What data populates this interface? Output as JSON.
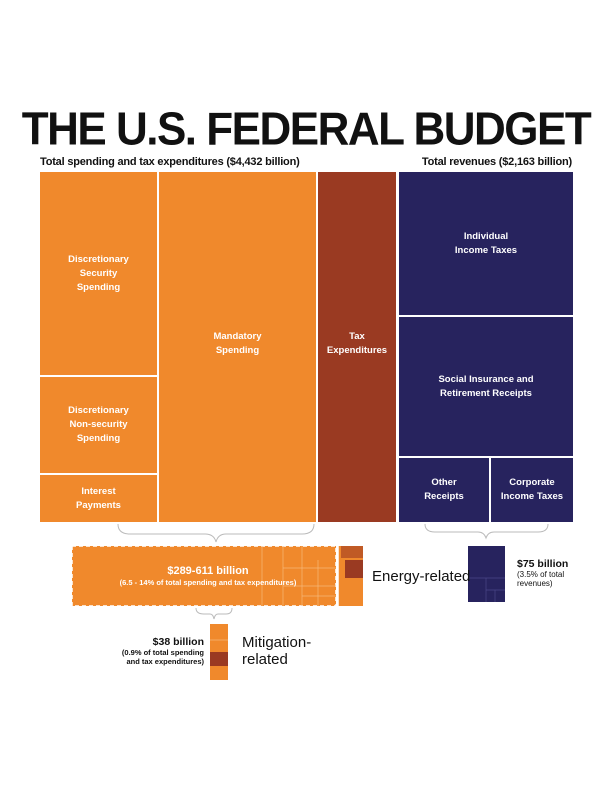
{
  "title": "THE U.S. FEDERAL BUDGET",
  "spending_caption": "Total spending and tax expenditures ($4,432 billion)",
  "revenue_caption": "Total revenues ($2,163 billion)",
  "spending_blocks": {
    "discretionary_security": "Discretionary\nSecurity\nSpending",
    "discretionary_nonsecurity": "Discretionary\nNon-security\nSpending",
    "interest": "Interest\nPayments",
    "mandatory": "Mandatory\nSpending",
    "tax_expenditures": "Tax\nExpenditures"
  },
  "revenue_blocks": {
    "individual": "Individual\nIncome Taxes",
    "social": "Social Insurance and\nRetirement Receipts",
    "other": "Other\nReceipts",
    "corporate": "Corporate\nIncome Taxes"
  },
  "energy": {
    "amount": "$289-611 billion",
    "note": "(6.5 - 14% of total spending and tax expenditures)",
    "label": "Energy-related"
  },
  "revenue_energy": {
    "amount": "$75 billion",
    "note": "(3.5% of total\nrevenues)"
  },
  "mitigation": {
    "amount": "$38 billion",
    "note": "(0.9% of total spending\nand tax expenditures)",
    "label": "Mitigation-\nrelated"
  },
  "colors": {
    "spending": "#f0892c",
    "tax_expenditures": "#9a3a22",
    "revenues": "#27235e"
  }
}
